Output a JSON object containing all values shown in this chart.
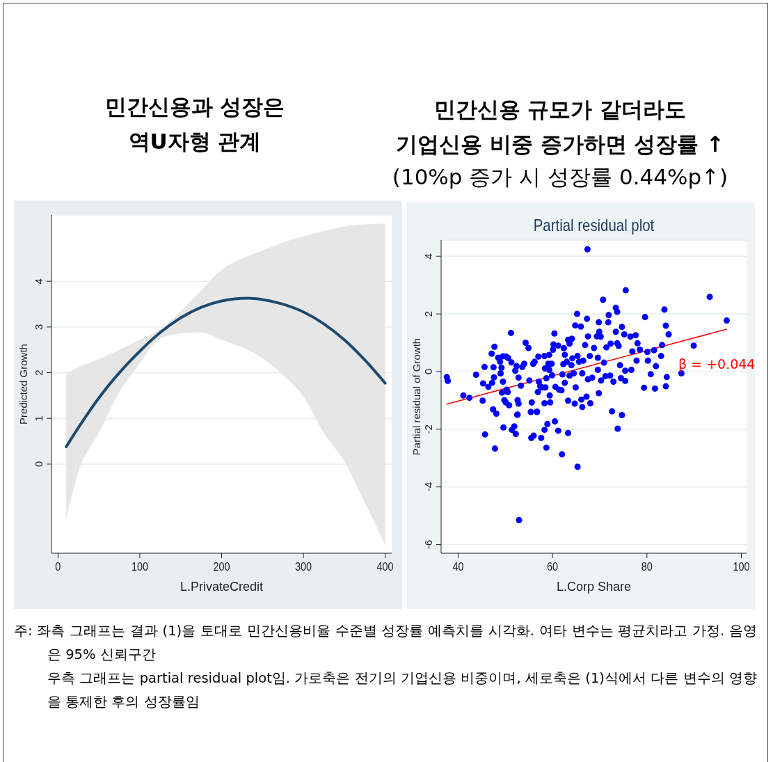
{
  "chart_data": [
    {
      "type": "line",
      "title": "민간신용과 성장은\n역U자형 관계",
      "xlabel": "L.PrivateCredit",
      "ylabel": "Predicted Growth",
      "x": [
        10,
        25,
        50,
        75,
        100,
        125,
        150,
        175,
        200,
        232,
        250,
        275,
        300,
        325,
        350,
        375,
        400
      ],
      "series": [
        {
          "color": "#1d4a6e",
          "values": [
            0.38,
            0.8,
            1.45,
            2.0,
            2.47,
            2.88,
            3.2,
            3.43,
            3.57,
            3.63,
            3.6,
            3.5,
            3.33,
            3.07,
            2.72,
            2.28,
            1.77
          ],
          "lower": [
            -1.22,
            -0.17,
            0.68,
            1.58,
            2.2,
            2.75,
            2.86,
            2.88,
            2.72,
            2.5,
            2.32,
            1.95,
            1.48,
            0.68,
            0.06,
            -0.84,
            -1.77
          ],
          "upper": [
            1.98,
            2.12,
            2.3,
            2.5,
            2.72,
            2.95,
            3.35,
            3.8,
            4.25,
            4.55,
            4.67,
            4.85,
            4.98,
            5.1,
            5.2,
            5.25,
            5.26
          ]
        }
      ],
      "xlim": [
        -8,
        408
      ],
      "ylim": [
        -1.95,
        5.45
      ],
      "xticks": [
        0,
        100,
        200,
        300,
        400
      ],
      "yticks": [
        0,
        1,
        2,
        3,
        4
      ],
      "grid": "y",
      "legend": false,
      "marker": "none",
      "line_style": "solid",
      "annotations": [
        "주: 좌측 그래프는 결과 (1)을 토대로 민간신용비율 수준별 성장률 예측치를 시각화. 여타 변수는 평균치라고 가정. 음영은 95% 신뢰구간",
        "우측 그래프는 partial residual plot임. 가로축은 전기의 기업신용 비중이며, 세로축은 (1)식에서 다른 변수의 영향을 통제한 후의 성장률임"
      ]
    },
    {
      "type": "scatter",
      "title": "민간신용 규모가 같더라도\n기업신용 비중 증가하면 성장률 ↑",
      "subtitle": "(10%p 증가 시 성장률 0.44%p↑)",
      "xlabel": "L.Corp Share",
      "ylabel": "Partial residual of Growth",
      "series": [
        {
          "color": "#0000ff",
          "marker": "circle",
          "x": [
            37.6,
            37.8,
            41.1,
            42.4,
            43.8,
            45.2,
            45.3,
            45.6,
            46.4,
            47.1,
            47.2,
            47.5,
            47.6,
            47.7,
            47.4,
            48.1,
            48.5,
            48.9,
            49.2,
            49.0,
            49.5,
            49.5,
            49.3,
            49.8,
            50.1,
            50.2,
            50.6,
            50.3,
            50.5,
            50.8,
            51.2,
            51.3,
            52.1,
            52.4,
            52.8,
            52.6,
            52.8,
            52.6,
            53.3,
            53.6,
            54.0,
            54.3,
            54.9,
            55.1,
            55.6,
            55.9,
            56.2,
            56.7,
            56.9,
            57.0,
            57.1,
            57.4,
            57.8,
            58.3,
            58.4,
            58.5,
            58.3,
            58.7,
            59.1,
            59.3,
            59.3,
            59.5,
            59.8,
            59.9,
            59.4,
            60.1,
            60.2,
            60.4,
            60.6,
            61.2,
            61.4,
            61.9,
            62.1,
            62.3,
            62.4,
            62.6,
            62.6,
            63.0,
            63.3,
            63.3,
            63.6,
            63.6,
            64.0,
            64.1,
            64.2,
            64.5,
            64.7,
            64.8,
            64.9,
            65.2,
            65.3,
            65.6,
            66.0,
            66.1,
            66.3,
            66.3,
            66.5,
            66.9,
            67.2,
            67.3,
            67.4,
            67.5,
            67.5,
            67.9,
            68.0,
            68.4,
            68.8,
            69.4,
            69.6,
            69.6,
            69.8,
            69.8,
            69.9,
            70.2,
            70.3,
            70.7,
            70.9,
            71.2,
            71.4,
            71.8,
            71.9,
            72.2,
            72.3,
            72.6,
            72.9,
            73.4,
            73.4,
            73.7,
            73.7,
            74.0,
            74.3,
            74.5,
            74.7,
            74.7,
            75.2,
            75.4,
            75.4,
            75.5,
            76.5,
            76.7,
            76.9,
            77.6,
            77.8,
            78.0,
            78.5,
            79.4,
            79.6,
            80.1,
            80.2,
            80.8,
            81.5,
            81.7,
            81.9,
            83.0,
            83.2,
            83.7,
            84.0,
            84.0,
            84.2,
            84.6,
            87.3,
            89.9,
            93.3,
            96.9,
            45.7,
            47.8,
            49.6,
            51.4,
            51.9,
            52.2,
            52.9,
            52.5,
            55.4,
            55.5,
            56.0,
            56.7,
            57.6,
            58.3,
            58.7,
            58.9,
            60.5,
            61.2,
            62.0,
            63.3,
            65.3,
            73.8
          ],
          "values": [
            -0.19,
            -0.32,
            -0.83,
            -0.91,
            -0.11,
            -1.01,
            -0.41,
            0.16,
            -0.53,
            0.62,
            -0.39,
            0.15,
            -0.2,
            0.86,
            -1.31,
            -1.46,
            0.48,
            0.34,
            0.13,
            -0.06,
            0.53,
            -0.35,
            -0.73,
            -0.99,
            -1.07,
            0.52,
            0.47,
            -0.63,
            -0.71,
            -1.17,
            1.34,
            0.32,
            0.03,
            0.19,
            -0.21,
            -0.99,
            -1.11,
            -1.49,
            -0.49,
            0.16,
            0.27,
            1.0,
            0.82,
            -0.31,
            -1.07,
            0.27,
            0.34,
            -1.39,
            -0.71,
            0.52,
            -0.35,
            -0.51,
            -0.55,
            0.54,
            0.11,
            -0.55,
            -1.1,
            -0.23,
            0.27,
            0.58,
            0.06,
            -1.07,
            0.27,
            -0.13,
            -0.83,
            0.76,
            0.94,
            1.32,
            -0.53,
            0.9,
            -0.63,
            -0.65,
            -0.1,
            0.26,
            0.81,
            0.58,
            -0.39,
            0.34,
            1.1,
            -1.01,
            0.97,
            -0.14,
            0.22,
            1.14,
            0.46,
            -0.06,
            -1.11,
            1.6,
            -0.55,
            2.0,
            0.54,
            0.34,
            1.56,
            -0.97,
            -1.23,
            -0.06,
            0.38,
            0.92,
            -0.87,
            1.83,
            4.24,
            1.22,
            -0.27,
            0.54,
            -1.1,
            -0.21,
            0.82,
            1.22,
            0.48,
            0.06,
            1.71,
            -0.75,
            1.38,
            1.21,
            -0.31,
            2.49,
            0.31,
            -0.16,
            0.84,
            1.71,
            1.96,
            -0.14,
            0.97,
            -1.38,
            -0.35,
            2.21,
            1.38,
            2.07,
            0.98,
            0.89,
            0.22,
            -0.23,
            -1.51,
            1.55,
            1.29,
            0.03,
            -0.32,
            2.82,
            1.21,
            0.06,
            0.7,
            1.26,
            0.38,
            0.98,
            0.76,
            -0.56,
            1.89,
            0.68,
            0.38,
            -0.09,
            0.74,
            -0.59,
            0.19,
            0.54,
            0.92,
            2.15,
            1.59,
            -0.51,
            -0.19,
            1.29,
            -0.06,
            0.9,
            2.59,
            1.77,
            -2.18,
            -2.67,
            -1.94,
            -2.02,
            -1.9,
            -2.16,
            -5.15,
            -1.5,
            -1.4,
            -2.3,
            -2.22,
            -1.4,
            -2.3,
            -2.02,
            -2.64,
            -1.82,
            -1.73,
            -2.05,
            -2.87,
            -2.13,
            -3.3,
            -1.98
          ]
        },
        {
          "type": "line",
          "color": "#ff0000",
          "marker": "none",
          "x": [
            37.6,
            96.9
          ],
          "values": [
            -1.13,
            1.47
          ]
        }
      ],
      "xlim": [
        36.4,
        101.1
      ],
      "ylim": [
        -6.3,
        4.56
      ],
      "xticks": [
        40,
        60,
        80,
        100
      ],
      "yticks": [
        -6,
        -4,
        -2,
        0,
        2,
        4
      ],
      "grid": "y",
      "legend": false,
      "line_style": "solid",
      "annotations": [
        "Partial residual plot",
        "β = +0.044"
      ]
    }
  ]
}
